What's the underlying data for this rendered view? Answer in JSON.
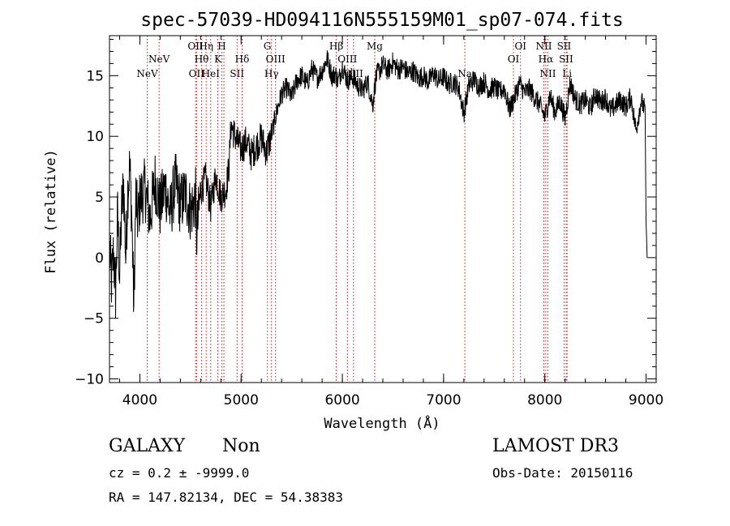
{
  "chart_data": {
    "type": "line",
    "title": "spec-57039-HD094116N555159M01_sp07-074.fits",
    "xlabel": "Wavelength (Å)",
    "ylabel": "Flux (relative)",
    "xlim": [
      3700,
      9100
    ],
    "ylim": [
      -10.3,
      18.3
    ],
    "xticks": [
      4000,
      5000,
      6000,
      7000,
      8000,
      9000
    ],
    "yticks": [
      -10,
      -5,
      0,
      5,
      10,
      15
    ],
    "grid": false,
    "series": [
      {
        "name": "spectrum",
        "x": [
          3700,
          3720,
          3740,
          3760,
          3780,
          3800,
          3820,
          3840,
          3860,
          3880,
          3900,
          3920,
          3940,
          3960,
          3980,
          4000,
          4050,
          4100,
          4150,
          4200,
          4250,
          4300,
          4350,
          4400,
          4450,
          4500,
          4550,
          4560,
          4600,
          4650,
          4700,
          4750,
          4800,
          4850,
          4880,
          4900,
          4950,
          5000,
          5050,
          5100,
          5150,
          5200,
          5250,
          5300,
          5350,
          5400,
          5450,
          5500,
          5550,
          5600,
          5650,
          5700,
          5750,
          5800,
          5850,
          5900,
          5930,
          5960,
          6000,
          6050,
          6100,
          6150,
          6200,
          6250,
          6300,
          6330,
          6350,
          6400,
          6450,
          6500,
          6550,
          6600,
          6650,
          6700,
          6750,
          6800,
          6850,
          6900,
          6950,
          7000,
          7050,
          7100,
          7150,
          7200,
          7250,
          7300,
          7350,
          7400,
          7450,
          7500,
          7550,
          7600,
          7650,
          7700,
          7750,
          7800,
          7850,
          7900,
          7950,
          8000,
          8050,
          8100,
          8150,
          8200,
          8250,
          8300,
          8350,
          8400,
          8450,
          8500,
          8550,
          8600,
          8650,
          8700,
          8750,
          8800,
          8850,
          8900,
          8950,
          8990,
          9000,
          9010
        ],
        "y": [
          1.0,
          -2.0,
          0.5,
          -3.0,
          3.5,
          -1.5,
          4.0,
          6.0,
          0.0,
          5.5,
          7.5,
          3.5,
          -4.0,
          5.0,
          3.0,
          4.8,
          5.7,
          3.2,
          6.4,
          4.1,
          5.9,
          3.6,
          6.2,
          4.4,
          5.3,
          3.8,
          4.9,
          1.6,
          5.5,
          6.5,
          4.2,
          6.8,
          5.0,
          5.6,
          7.5,
          10.9,
          9.8,
          8.9,
          9.6,
          8.5,
          9.2,
          9.9,
          8.7,
          10.1,
          12.0,
          13.5,
          14.0,
          13.2,
          14.6,
          15.0,
          14.3,
          15.6,
          14.8,
          15.4,
          16.4,
          14.9,
          15.2,
          14.5,
          15.8,
          14.6,
          14.9,
          14.2,
          13.8,
          14.5,
          12.6,
          14.8,
          15.2,
          15.9,
          15.4,
          16.1,
          15.5,
          15.7,
          15.2,
          15.4,
          14.8,
          15.0,
          14.5,
          15.2,
          14.6,
          14.9,
          14.3,
          14.5,
          14.0,
          11.9,
          14.2,
          14.7,
          14.1,
          14.5,
          13.8,
          14.1,
          13.6,
          14.0,
          12.2,
          13.2,
          14.4,
          13.6,
          13.9,
          13.2,
          12.6,
          11.6,
          13.4,
          12.0,
          12.9,
          11.5,
          14.4,
          13.1,
          12.6,
          13.0,
          12.3,
          13.5,
          12.8,
          13.2,
          12.1,
          12.6,
          13.0,
          12.4,
          13.3,
          10.5,
          12.9,
          12.2,
          3.0,
          0.0
        ]
      }
    ],
    "lines": [
      {
        "x": 4073,
        "label": "NeV",
        "row": 3
      },
      {
        "x": 4190,
        "label": "NeV",
        "row": 2
      },
      {
        "x": 4550,
        "label": "OII",
        "row": 1
      },
      {
        "x": 4560,
        "label": "OII",
        "row": 3
      },
      {
        "x": 4610,
        "label": "Hθ",
        "row": 2
      },
      {
        "x": 4655,
        "label": "Hη",
        "row": 1
      },
      {
        "x": 4700,
        "label": "HeI",
        "row": 3
      },
      {
        "x": 4770,
        "label": "K",
        "row": 2
      },
      {
        "x": 4810,
        "label": "H",
        "row": 1
      },
      {
        "x": 4830,
        "label": "",
        "row": 0
      },
      {
        "x": 4960,
        "label": "SII",
        "row": 3
      },
      {
        "x": 5010,
        "label": "Hδ",
        "row": 2
      },
      {
        "x": 5260,
        "label": "G",
        "row": 1
      },
      {
        "x": 5300,
        "label": "Hγ",
        "row": 3
      },
      {
        "x": 5340,
        "label": "OIII",
        "row": 2
      },
      {
        "x": 5940,
        "label": "Hβ",
        "row": 1
      },
      {
        "x": 6050,
        "label": "OIII",
        "row": 2
      },
      {
        "x": 6110,
        "label": "OIII",
        "row": 3
      },
      {
        "x": 6320,
        "label": "Mg",
        "row": 1
      },
      {
        "x": 7210,
        "label": "Na",
        "row": 3
      },
      {
        "x": 7690,
        "label": "OI",
        "row": 2
      },
      {
        "x": 7760,
        "label": "OI",
        "row": 1
      },
      {
        "x": 7990,
        "label": "NII",
        "row": 1
      },
      {
        "x": 8010,
        "label": "Hα",
        "row": 2
      },
      {
        "x": 8030,
        "label": "NII",
        "row": 3
      },
      {
        "x": 8190,
        "label": "SII",
        "row": 1
      },
      {
        "x": 8210,
        "label": "SII",
        "row": 2
      },
      {
        "x": 8220,
        "label": "Li",
        "row": 3
      }
    ],
    "colors": {
      "axes": "#000000",
      "spectrum": "#000000",
      "lines": "#b22222"
    }
  },
  "info": {
    "class": "GALAXY",
    "subclass": "Non",
    "survey": "LAMOST DR3",
    "cz": "cz = 0.2 ± -9999.0",
    "obs_date": "Obs-Date: 20150116",
    "coords": "RA = 147.82134, DEC =  54.38383"
  }
}
